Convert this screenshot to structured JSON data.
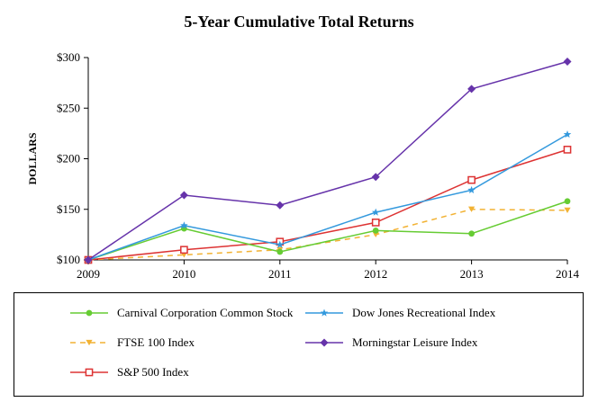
{
  "chart_data": {
    "type": "line",
    "title": "5-Year Cumulative Total Returns",
    "xlabel": "",
    "ylabel": "DOLLARS",
    "x": [
      "2009",
      "2010",
      "2011",
      "2012",
      "2013",
      "2014"
    ],
    "yticks": [
      "$100",
      "$150",
      "$200",
      "$250",
      "$300"
    ],
    "ylim": [
      100,
      300
    ],
    "grid": false,
    "legend_position": "bottom",
    "series": [
      {
        "name": "Carnival Corporation Common Stock",
        "values": [
          100,
          131,
          108,
          129,
          126,
          158
        ],
        "color": "#66cc33",
        "marker": "circle",
        "dash": "solid"
      },
      {
        "name": "Dow Jones Recreational Index",
        "values": [
          100,
          134,
          115,
          147,
          169,
          224
        ],
        "color": "#3399dd",
        "marker": "star",
        "dash": "solid"
      },
      {
        "name": "FTSE 100 Index",
        "values": [
          100,
          105,
          110,
          125,
          150,
          149
        ],
        "color": "#f2b233",
        "marker": "triangle-down",
        "dash": "dashed"
      },
      {
        "name": "Morningstar Leisure Index",
        "values": [
          100,
          164,
          154,
          182,
          269,
          296
        ],
        "color": "#6633aa",
        "marker": "diamond",
        "dash": "solid"
      },
      {
        "name": "S&P 500 Index",
        "values": [
          100,
          110,
          118,
          137,
          179,
          209
        ],
        "color": "#dd3333",
        "marker": "square-open",
        "dash": "solid"
      }
    ]
  }
}
